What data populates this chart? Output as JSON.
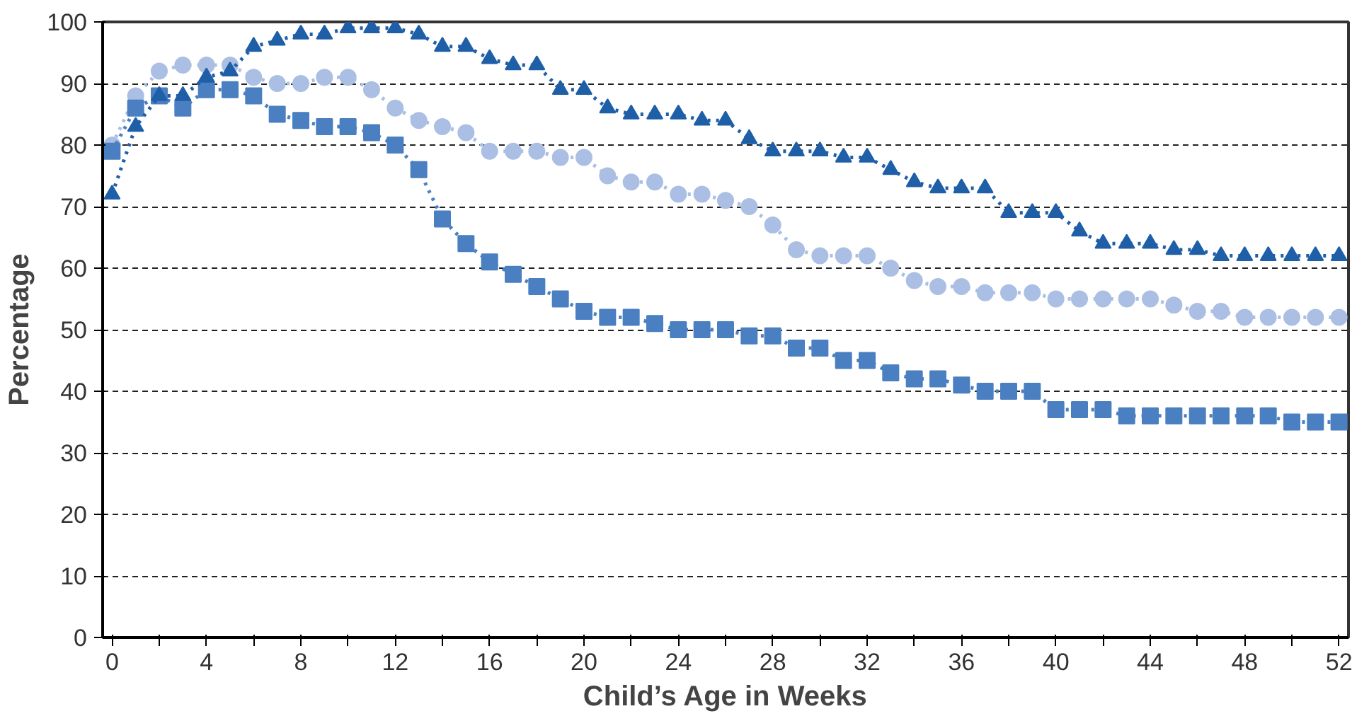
{
  "chart_data": {
    "type": "line",
    "xlabel": "Child’s Age in Weeks",
    "ylabel": "Percentage",
    "x": [
      0,
      1,
      2,
      3,
      4,
      5,
      6,
      7,
      8,
      9,
      10,
      11,
      12,
      13,
      14,
      15,
      16,
      17,
      18,
      19,
      20,
      21,
      22,
      23,
      24,
      25,
      26,
      27,
      28,
      29,
      30,
      31,
      32,
      33,
      34,
      35,
      36,
      37,
      38,
      39,
      40,
      41,
      42,
      43,
      44,
      45,
      46,
      47,
      48,
      49,
      50,
      51,
      52
    ],
    "xlim": [
      -0.4,
      52.4
    ],
    "ylim": [
      0,
      100
    ],
    "xticks": [
      0,
      {
        "value": 2,
        "label": null
      },
      4,
      {
        "value": 6,
        "label": null
      },
      8,
      {
        "value": 10,
        "label": null
      },
      12,
      {
        "value": 14,
        "label": null
      },
      16,
      {
        "value": 18,
        "label": null
      },
      20,
      {
        "value": 22,
        "label": null
      },
      24,
      {
        "value": 26,
        "label": null
      },
      28,
      {
        "value": 30,
        "label": null
      },
      32,
      {
        "value": 34,
        "label": null
      },
      36,
      {
        "value": 38,
        "label": null
      },
      40,
      {
        "value": 42,
        "label": null
      },
      44,
      {
        "value": 46,
        "label": null
      },
      48,
      {
        "value": 50,
        "label": null
      },
      52
    ],
    "yticks": [
      0,
      10,
      20,
      30,
      40,
      50,
      60,
      70,
      80,
      90,
      100
    ],
    "grid": "y",
    "line_style": "dotted",
    "series": [
      {
        "color": "#aabfe3",
        "marker": "circle",
        "values": [
          80,
          88,
          92,
          93,
          93,
          93,
          91,
          90,
          90,
          91,
          91,
          89,
          86,
          84,
          83,
          82,
          79,
          79,
          79,
          78,
          78,
          75,
          74,
          74,
          72,
          72,
          71,
          70,
          67,
          63,
          62,
          62,
          62,
          60,
          58,
          57,
          57,
          56,
          56,
          56,
          55,
          55,
          55,
          55,
          55,
          54,
          53,
          53,
          52,
          52,
          52,
          52,
          52
        ]
      },
      {
        "color": "#4a7fc1",
        "marker": "square",
        "values": [
          79,
          86,
          88,
          86,
          89,
          89,
          88,
          85,
          84,
          83,
          83,
          82,
          80,
          76,
          68,
          64,
          61,
          59,
          57,
          55,
          53,
          52,
          52,
          51,
          50,
          50,
          50,
          49,
          49,
          47,
          47,
          45,
          45,
          43,
          42,
          42,
          41,
          40,
          40,
          40,
          37,
          37,
          37,
          36,
          36,
          36,
          36,
          36,
          36,
          36,
          35,
          35,
          35
        ]
      },
      {
        "color": "#1f5fa8",
        "marker": "triangle",
        "values": [
          72,
          83,
          88,
          88,
          91,
          92,
          96,
          97,
          98,
          98,
          99,
          99,
          99,
          98,
          96,
          96,
          94,
          93,
          93,
          89,
          89,
          86,
          85,
          85,
          85,
          84,
          84,
          81,
          79,
          79,
          79,
          78,
          78,
          76,
          74,
          73,
          73,
          73,
          69,
          69,
          69,
          66,
          64,
          64,
          64,
          63,
          63,
          62,
          62,
          62,
          62,
          62,
          62
        ]
      }
    ]
  }
}
